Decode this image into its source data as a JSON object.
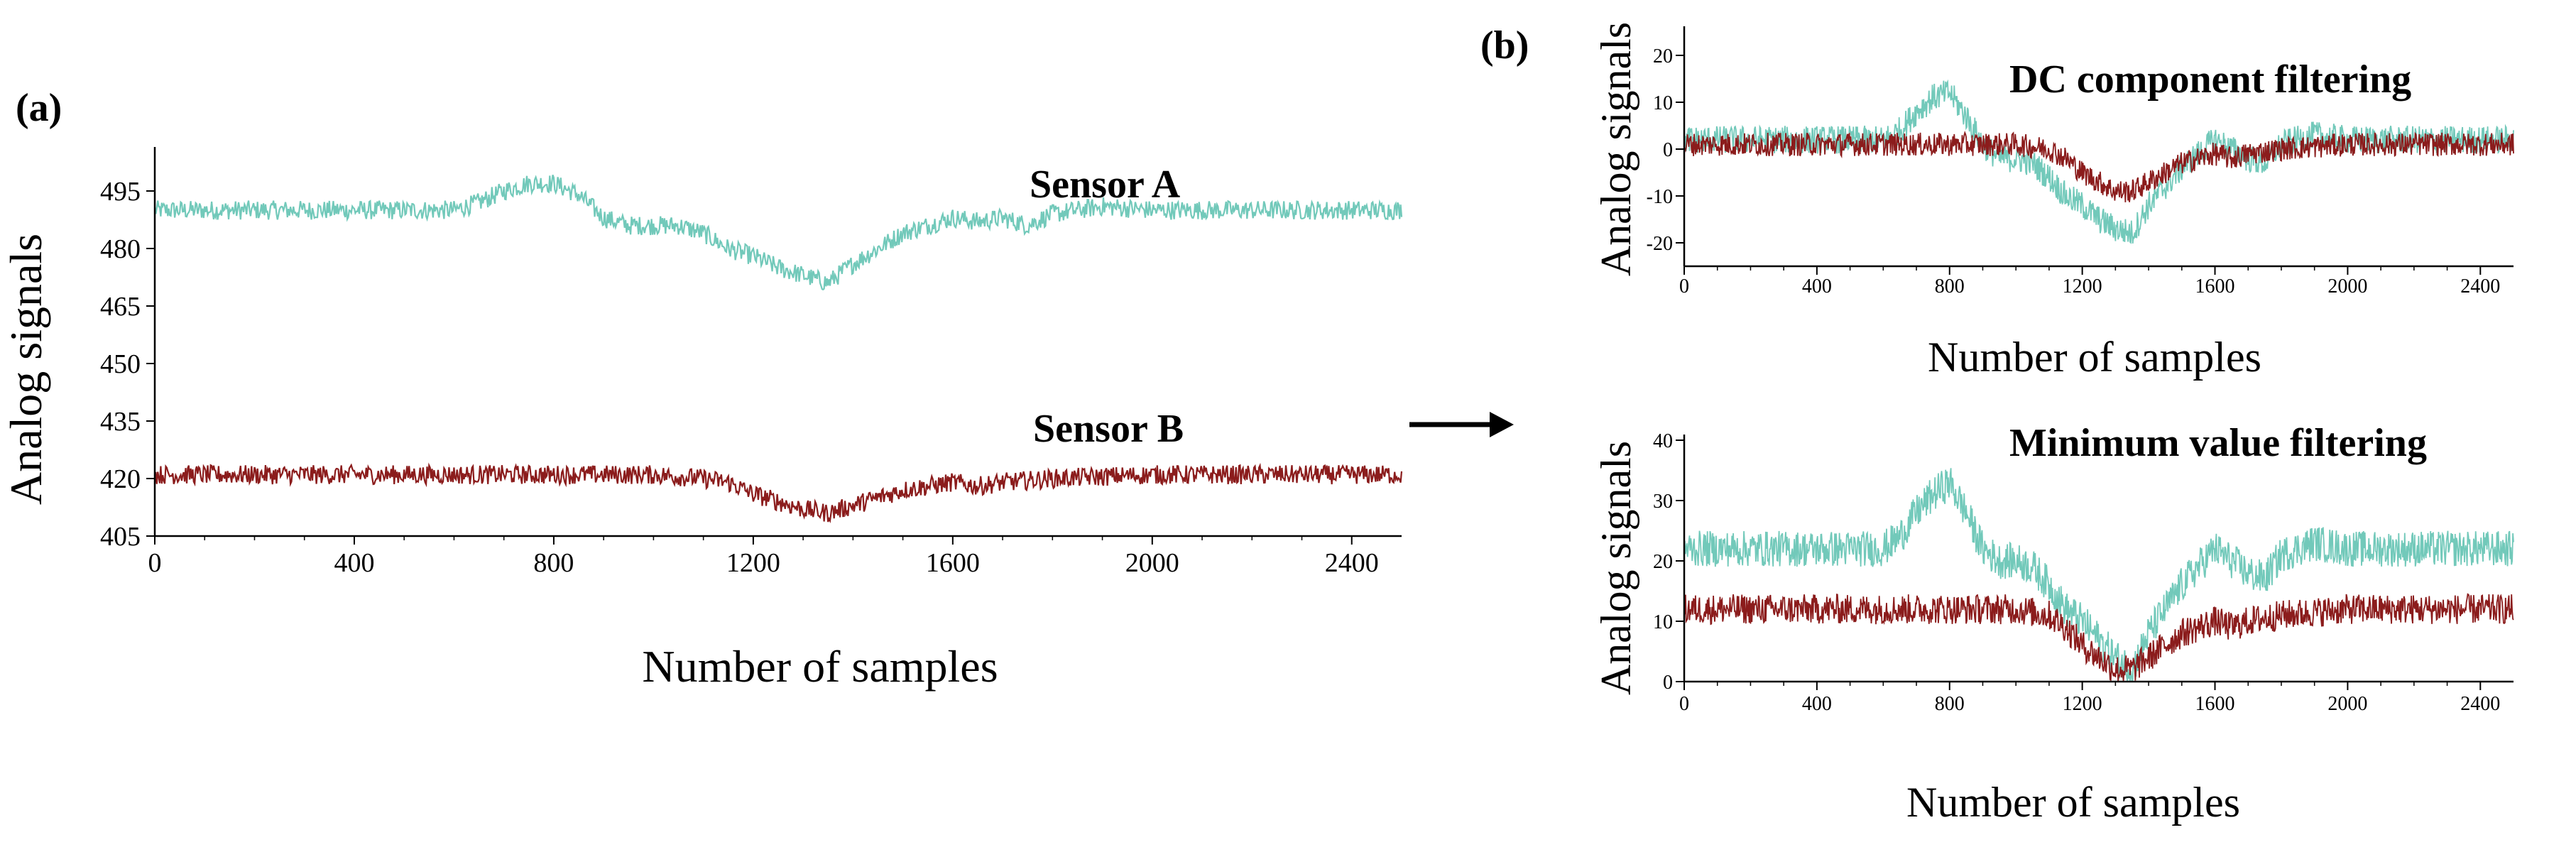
{
  "chart_data": [
    {
      "panel": "(a)",
      "type": "line",
      "title": "",
      "xlabel": "Number of samples",
      "ylabel": "Analog signals",
      "xlim": [
        0,
        2500
      ],
      "ylim": [
        405,
        505
      ],
      "xticks": [
        "0",
        "400",
        "800",
        "1200",
        "1600",
        "2000",
        "2400"
      ],
      "yticks": [
        "405",
        "420",
        "435",
        "450",
        "465",
        "480",
        "495"
      ],
      "colors": {
        "sensor_a": "#72c9ba",
        "sensor_b": "#8b1c1c"
      },
      "annotations": [
        {
          "id": "sensor_a",
          "text": "Sensor A"
        },
        {
          "id": "sensor_b",
          "text": "Sensor B"
        }
      ],
      "series": [
        {
          "name": "Sensor A",
          "color": "#72c9ba",
          "x": [
            0,
            200,
            400,
            600,
            650,
            700,
            750,
            800,
            850,
            900,
            950,
            1000,
            1050,
            1100,
            1150,
            1200,
            1250,
            1300,
            1350,
            1400,
            1450,
            1500,
            1550,
            1600,
            1650,
            1700,
            1750,
            1800,
            1850,
            1900,
            2000,
            2200,
            2400,
            2500
          ],
          "y": [
            490,
            490,
            490,
            490,
            492,
            495,
            497,
            497,
            494,
            488,
            486,
            486,
            486,
            484,
            480,
            478,
            475,
            473,
            471,
            476,
            480,
            484,
            486,
            488,
            487,
            488,
            486,
            489,
            490,
            491,
            490,
            490,
            490,
            490
          ],
          "noise": 2.5
        },
        {
          "name": "Sensor B",
          "color": "#8b1c1c",
          "x": [
            0,
            200,
            400,
            600,
            800,
            1000,
            1100,
            1150,
            1200,
            1250,
            1300,
            1350,
            1400,
            1450,
            1500,
            1550,
            1600,
            1650,
            1700,
            1800,
            2000,
            2200,
            2400,
            2500
          ],
          "y": [
            421,
            421,
            421,
            421,
            421,
            421,
            420,
            419,
            416,
            414,
            412,
            411,
            413,
            415,
            417,
            418,
            419,
            418,
            419,
            420,
            421,
            421,
            421,
            421
          ],
          "noise": 2.5
        }
      ]
    },
    {
      "panel": "(b)",
      "type": "line",
      "title": "DC component filtering",
      "xlabel": "Number of samples",
      "ylabel": "Analog signals",
      "xlim": [
        0,
        2500
      ],
      "ylim": [
        -25,
        25
      ],
      "xticks": [
        "0",
        "400",
        "800",
        "1200",
        "1600",
        "2000",
        "2400"
      ],
      "yticks": [
        "-20",
        "-10",
        "0",
        "10",
        "20"
      ],
      "series": [
        {
          "name": "Sensor A",
          "color": "#72c9ba",
          "x": [
            0,
            200,
            400,
            600,
            650,
            700,
            750,
            800,
            850,
            900,
            950,
            1000,
            1050,
            1100,
            1150,
            1200,
            1250,
            1300,
            1350,
            1400,
            1450,
            1500,
            1550,
            1600,
            1650,
            1700,
            1750,
            1800,
            1850,
            1900,
            2000,
            2200,
            2400,
            2500
          ],
          "y": [
            2,
            2,
            2,
            2,
            4,
            8,
            11,
            12,
            7,
            1,
            -2,
            -2,
            -3,
            -6,
            -10,
            -12,
            -15,
            -17,
            -18,
            -12,
            -8,
            -4,
            -1,
            2,
            0,
            -2,
            -3,
            1,
            2,
            3,
            2,
            2,
            2,
            2
          ],
          "noise": 3
        },
        {
          "name": "Sensor B",
          "color": "#8b1c1c",
          "x": [
            0,
            200,
            400,
            600,
            800,
            1000,
            1100,
            1150,
            1200,
            1250,
            1300,
            1350,
            1400,
            1450,
            1500,
            1550,
            1600,
            1650,
            1700,
            1800,
            2000,
            2200,
            2400,
            2500
          ],
          "y": [
            1,
            1,
            1,
            1,
            1,
            1,
            0,
            -2,
            -5,
            -7,
            -9,
            -9,
            -7,
            -5,
            -3,
            -2,
            -1,
            -2,
            -1,
            0,
            1,
            1,
            1,
            1
          ],
          "noise": 2.5
        }
      ]
    },
    {
      "panel": "(b)",
      "type": "line",
      "title": "Minimum value filtering",
      "xlabel": "Number of samples",
      "ylabel": "Analog signals",
      "xlim": [
        0,
        2500
      ],
      "ylim": [
        0,
        40
      ],
      "xticks": [
        "0",
        "400",
        "800",
        "1200",
        "1600",
        "2000",
        "2400"
      ],
      "yticks": [
        "0",
        "10",
        "20",
        "30",
        "40"
      ],
      "series": [
        {
          "name": "Sensor A",
          "color": "#72c9ba",
          "x": [
            0,
            200,
            400,
            600,
            650,
            700,
            750,
            800,
            850,
            900,
            950,
            1000,
            1050,
            1100,
            1150,
            1200,
            1250,
            1300,
            1350,
            1400,
            1450,
            1500,
            1550,
            1600,
            1650,
            1700,
            1750,
            1800,
            1850,
            1900,
            2000,
            2200,
            2400,
            2500
          ],
          "y": [
            22,
            22,
            22,
            22,
            24,
            28,
            31,
            33,
            28,
            22,
            20,
            20,
            19,
            16,
            12,
            10,
            7,
            4,
            2,
            8,
            12,
            16,
            19,
            22,
            20,
            18,
            17,
            21,
            22,
            23,
            22,
            22,
            22,
            22
          ],
          "noise": 3
        },
        {
          "name": "Sensor B",
          "color": "#8b1c1c",
          "x": [
            0,
            200,
            400,
            600,
            800,
            1000,
            1100,
            1150,
            1200,
            1250,
            1300,
            1350,
            1400,
            1450,
            1500,
            1550,
            1600,
            1650,
            1700,
            1800,
            2000,
            2200,
            2400,
            2500
          ],
          "y": [
            12,
            12,
            12,
            12,
            12,
            12,
            11,
            9,
            6,
            4,
            2,
            2,
            4,
            6,
            8,
            9,
            10,
            9,
            10,
            11,
            12,
            12,
            12,
            12
          ],
          "noise": 2.5
        }
      ]
    }
  ]
}
